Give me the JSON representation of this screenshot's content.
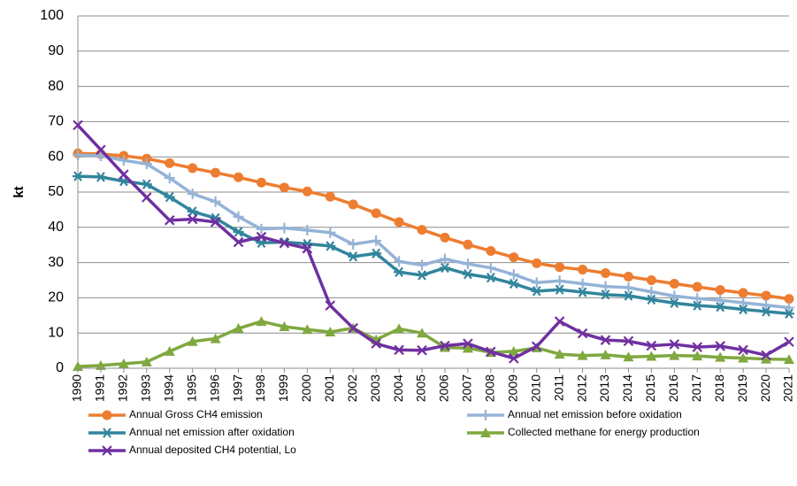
{
  "chart_data": {
    "type": "line",
    "y_label": "kt",
    "categories": [
      "1990",
      "1991",
      "1992",
      "1993",
      "1994",
      "1995",
      "1996",
      "1997",
      "1998",
      "1999",
      "2000",
      "2001",
      "2002",
      "2003",
      "2004",
      "2005",
      "2006",
      "2007",
      "2008",
      "2009",
      "2010",
      "2011",
      "2012",
      "2013",
      "2014",
      "2015",
      "2016",
      "2017",
      "2018",
      "2019",
      "2020",
      "2021"
    ],
    "ylim": [
      0,
      100
    ],
    "yticks": [
      0,
      10,
      20,
      30,
      40,
      50,
      60,
      70,
      80,
      90,
      100
    ],
    "grid": true,
    "legend": "bottom",
    "series": [
      {
        "name": "Annual Gross CH4 emission",
        "color": "#ed7d31",
        "marker": "circle",
        "values": [
          61,
          60.8,
          60.3,
          59.5,
          58.2,
          56.8,
          55.5,
          54.2,
          52.7,
          51.3,
          50.2,
          48.7,
          46.5,
          44,
          41.5,
          39.3,
          37.1,
          35.1,
          33.3,
          31.5,
          29.8,
          28.7,
          28,
          27,
          26,
          25,
          24,
          23.1,
          22.2,
          21.4,
          20.6,
          19.7
        ]
      },
      {
        "name": "Annual net emission before oxidation",
        "color": "#95b3d7",
        "marker": "plus",
        "values": [
          60.5,
          60.3,
          59,
          58,
          54,
          49.5,
          47.3,
          43,
          39.5,
          39.8,
          39.2,
          38.5,
          35.2,
          36.2,
          30.3,
          29.3,
          31,
          29.6,
          28.5,
          26.6,
          24.3,
          24.8,
          24,
          23.2,
          22.9,
          21.7,
          20.5,
          19.8,
          19.3,
          18.6,
          17.9,
          17.2
        ]
      },
      {
        "name": "Annual net emission after oxidation",
        "color": "#31859c",
        "marker": "asterisk",
        "values": [
          54.5,
          54.3,
          53.1,
          52.2,
          48.6,
          44.5,
          42.6,
          38.7,
          35.6,
          35.8,
          35.3,
          34.7,
          31.7,
          32.6,
          27.3,
          26.4,
          28.5,
          26.7,
          25.7,
          24,
          21.9,
          22.3,
          21.6,
          20.9,
          20.6,
          19.5,
          18.5,
          17.8,
          17.4,
          16.7,
          16.1,
          15.5
        ]
      },
      {
        "name": "Collected methane for energy production",
        "color": "#7fa83f",
        "marker": "triangle",
        "values": [
          0.5,
          0.8,
          1.3,
          1.8,
          4.8,
          7.6,
          8.4,
          11.3,
          13.3,
          11.8,
          11,
          10.3,
          11.4,
          8.1,
          11.2,
          10,
          5.9,
          5.7,
          4.5,
          4.8,
          5.8,
          4,
          3.6,
          3.8,
          3.2,
          3.4,
          3.6,
          3.5,
          3.1,
          2.9,
          2.6,
          2.5
        ]
      },
      {
        "name": "Annual deposited CH4 potential, Lo",
        "color": "#7030a0",
        "marker": "x",
        "values": [
          69,
          62,
          55,
          48.5,
          42,
          42.3,
          41.5,
          35.8,
          37.3,
          35.5,
          34,
          17.8,
          11.4,
          7,
          5.2,
          5.1,
          6.4,
          7,
          4.7,
          2.8,
          6.2,
          13.3,
          9.9,
          8,
          7.7,
          6.4,
          6.8,
          6,
          6.3,
          5.2,
          3.7,
          7.5
        ]
      }
    ]
  }
}
